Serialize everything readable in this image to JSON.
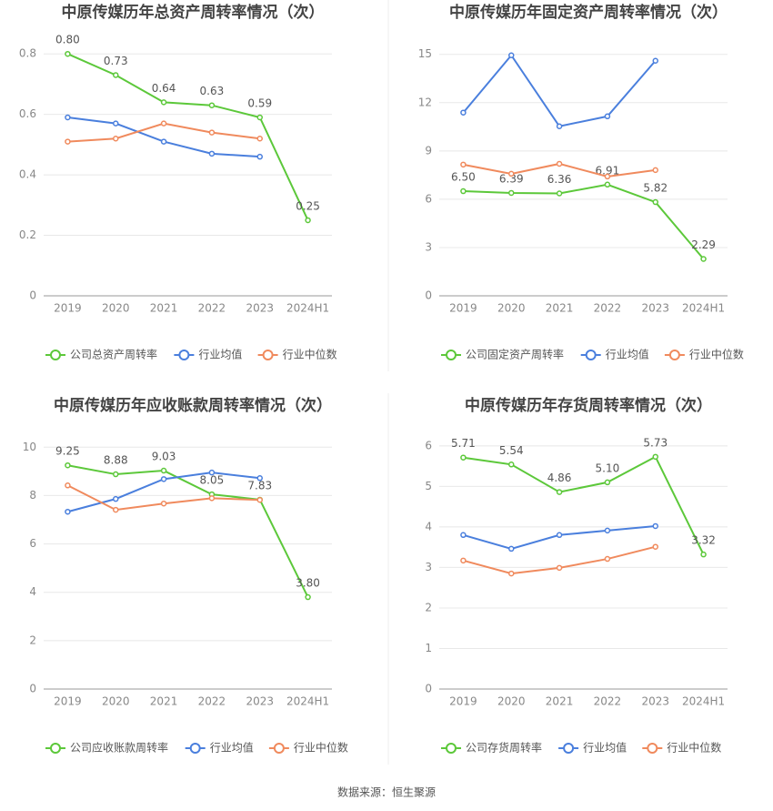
{
  "chart_data": [
    {
      "type": "line",
      "title": "中原传媒历年总资产周转率情况（次）",
      "categories": [
        "2019",
        "2020",
        "2021",
        "2022",
        "2023",
        "2024H1"
      ],
      "series": [
        {
          "name": "公司总资产周转率",
          "color": "#5cc83a",
          "values": [
            0.8,
            0.73,
            0.64,
            0.63,
            0.59,
            0.25
          ],
          "value_labels": [
            "0.80",
            "0.73",
            "0.64",
            "0.63",
            "0.59",
            "0.25"
          ]
        },
        {
          "name": "行业均值",
          "color": "#4a7fdd",
          "values": [
            0.59,
            0.57,
            0.51,
            0.47,
            0.46,
            null
          ]
        },
        {
          "name": "行业中位数",
          "color": "#f08a5d",
          "values": [
            0.51,
            0.52,
            0.57,
            0.54,
            0.52,
            null
          ]
        }
      ],
      "ylim": [
        0,
        0.9
      ],
      "yticks": [
        0,
        0.2,
        0.4,
        0.6,
        0.8
      ],
      "grid": true
    },
    {
      "type": "line",
      "title": "中原传媒历年固定资产周转率情况（次）",
      "categories": [
        "2019",
        "2020",
        "2021",
        "2022",
        "2023",
        "2024H1"
      ],
      "series": [
        {
          "name": "公司固定资产周转率",
          "color": "#5cc83a",
          "values": [
            6.5,
            6.39,
            6.36,
            6.91,
            5.82,
            2.29
          ],
          "value_labels": [
            "6.50",
            "6.39",
            "6.36",
            "6.91",
            "5.82",
            "2.29"
          ]
        },
        {
          "name": "行业均值",
          "color": "#4a7fdd",
          "values": [
            11.38,
            14.94,
            10.53,
            11.15,
            14.6,
            null
          ]
        },
        {
          "name": "行业中位数",
          "color": "#f08a5d",
          "values": [
            8.15,
            7.58,
            8.2,
            7.41,
            7.81,
            null
          ]
        }
      ],
      "ylim": [
        0,
        16
      ],
      "yticks": [
        0,
        3,
        6,
        9,
        12,
        15
      ],
      "grid": true
    },
    {
      "type": "line",
      "title": "中原传媒历年应收账款周转率情况（次）",
      "categories": [
        "2019",
        "2020",
        "2021",
        "2022",
        "2023",
        "2024H1"
      ],
      "series": [
        {
          "name": "公司应收账款周转率",
          "color": "#5cc83a",
          "values": [
            9.25,
            8.88,
            9.03,
            8.05,
            7.83,
            3.8
          ],
          "value_labels": [
            "9.25",
            "8.88",
            "9.03",
            "8.05",
            "7.83",
            "3.80"
          ]
        },
        {
          "name": "行业均值",
          "color": "#4a7fdd",
          "values": [
            7.33,
            7.86,
            8.68,
            8.95,
            8.72,
            null
          ]
        },
        {
          "name": "行业中位数",
          "color": "#f08a5d",
          "values": [
            8.42,
            7.41,
            7.67,
            7.89,
            7.82,
            null
          ]
        }
      ],
      "ylim": [
        0,
        10.5
      ],
      "yticks": [
        0,
        2,
        4,
        6,
        8,
        10
      ],
      "grid": true
    },
    {
      "type": "line",
      "title": "中原传媒历年存货周转率情况（次）",
      "categories": [
        "2019",
        "2020",
        "2021",
        "2022",
        "2023",
        "2024H1"
      ],
      "series": [
        {
          "name": "公司存货周转率",
          "color": "#5cc83a",
          "values": [
            5.71,
            5.54,
            4.86,
            5.1,
            5.73,
            3.32
          ],
          "value_labels": [
            "5.71",
            "5.54",
            "4.86",
            "5.10",
            "5.73",
            "3.32"
          ]
        },
        {
          "name": "行业均值",
          "color": "#4a7fdd",
          "values": [
            3.8,
            3.46,
            3.8,
            3.91,
            4.02,
            null
          ]
        },
        {
          "name": "行业中位数",
          "color": "#f08a5d",
          "values": [
            3.17,
            2.85,
            2.99,
            3.21,
            3.51,
            null
          ]
        }
      ],
      "ylim": [
        0,
        6.4
      ],
      "yticks": [
        0,
        1,
        2,
        3,
        4,
        5,
        6
      ],
      "grid": true
    }
  ],
  "source": "数据来源：恒生聚源"
}
